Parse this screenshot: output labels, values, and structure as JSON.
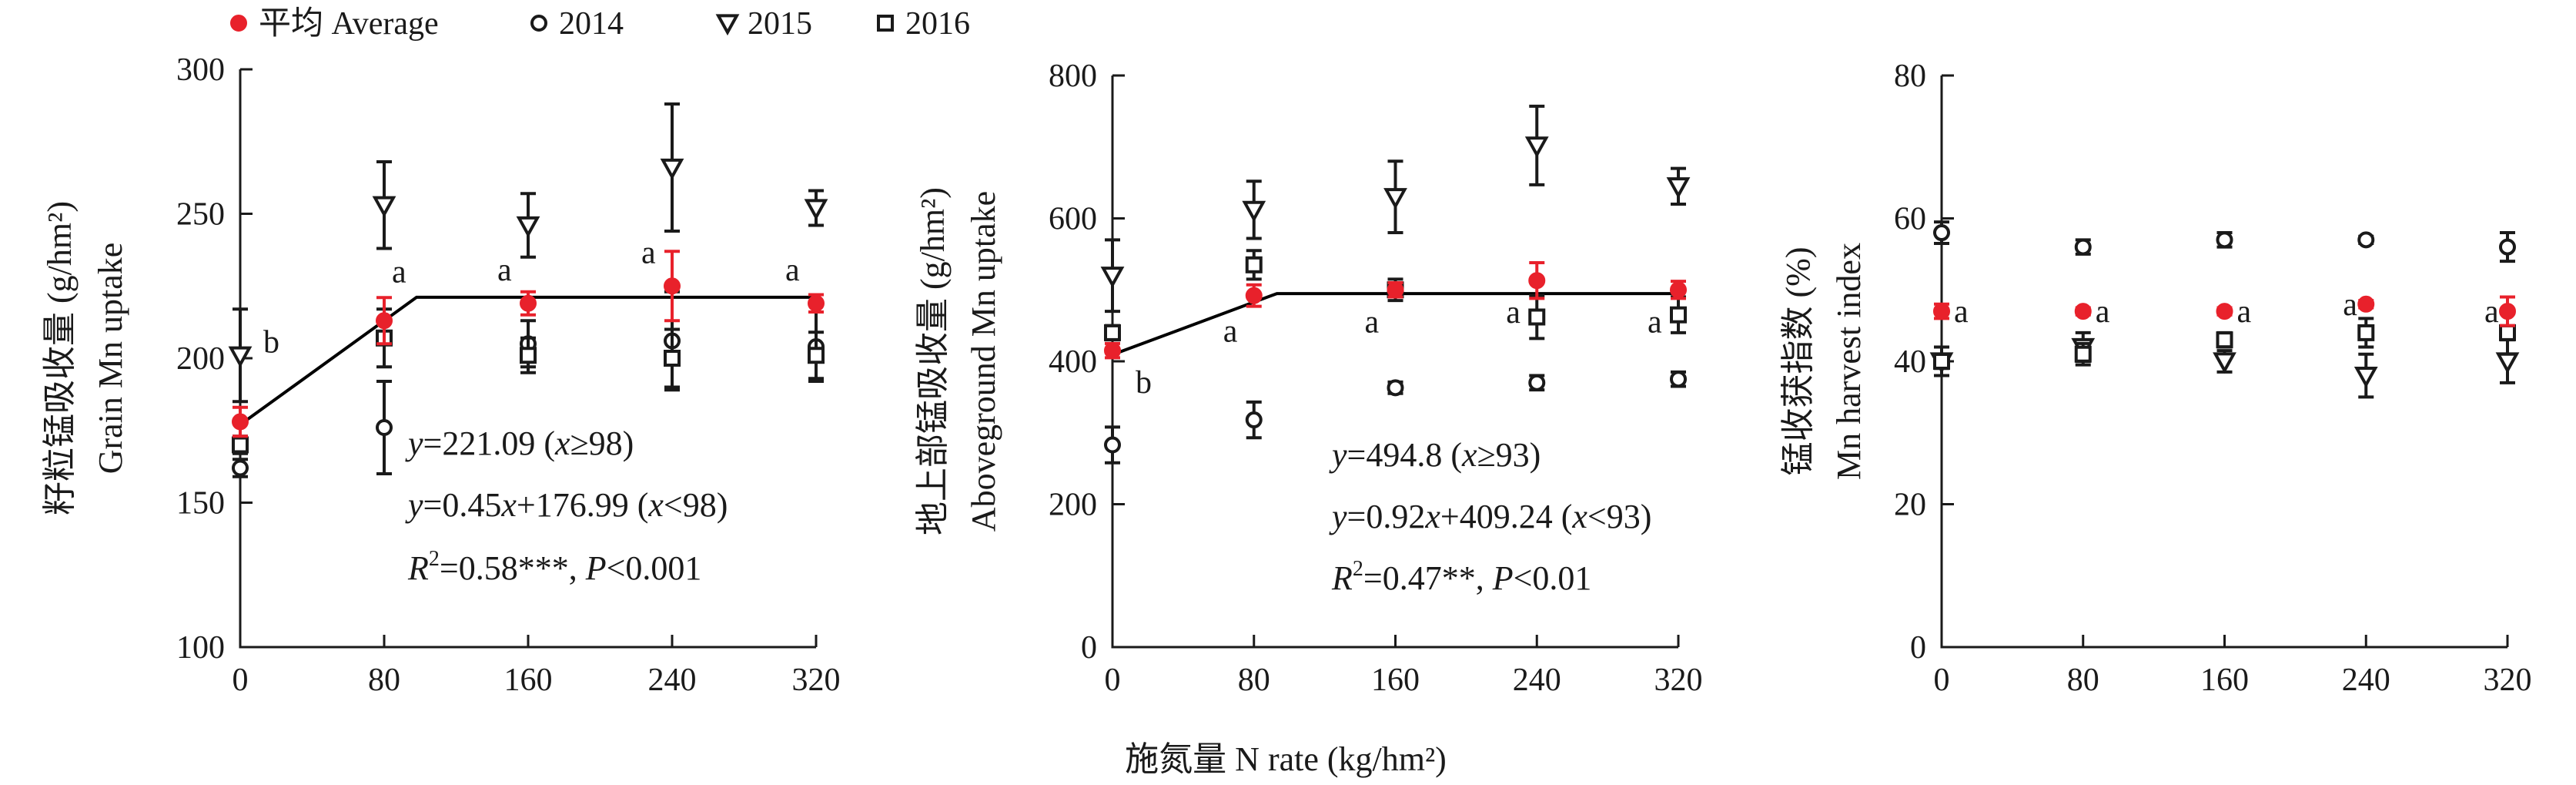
{
  "legend": {
    "items": [
      {
        "key": "avg",
        "label": "平均 Average",
        "marker": "filled-circle",
        "color": "#e8212b"
      },
      {
        "key": "y2014",
        "label": "2014",
        "marker": "open-circle",
        "color": "#1a1a1a"
      },
      {
        "key": "y2015",
        "label": "2015",
        "marker": "down-triangle",
        "color": "#1a1a1a"
      },
      {
        "key": "y2016",
        "label": "2016",
        "marker": "open-square",
        "color": "#1a1a1a"
      }
    ]
  },
  "shared_xlabel": "施氮量 N rate (kg/hm²)",
  "chart_data": [
    {
      "type": "scatter",
      "ylabel_cn": "籽粒锰吸收量 (g/hm²)",
      "ylabel_en": "Grain Mn uptake",
      "xlim": [
        0,
        320
      ],
      "ylim": [
        100,
        300
      ],
      "xticks": [
        0,
        80,
        160,
        240,
        320
      ],
      "yticks": [
        100,
        150,
        200,
        250,
        300
      ],
      "x": [
        0,
        80,
        160,
        240,
        320
      ],
      "series": [
        {
          "key": "y2014",
          "values": [
            162,
            176,
            205,
            206,
            204
          ],
          "err": [
            3,
            16,
            8,
            17,
            12
          ]
        },
        {
          "key": "y2015",
          "values": [
            201,
            253,
            246,
            266,
            252
          ],
          "err": [
            16,
            15,
            11,
            22,
            6
          ]
        },
        {
          "key": "y2016",
          "values": [
            170,
            207,
            201,
            200,
            201
          ],
          "err": [
            3,
            10,
            6,
            10,
            8
          ]
        },
        {
          "key": "avg",
          "values": [
            178,
            213,
            219,
            225,
            219
          ],
          "err": [
            5,
            8,
            4,
            12,
            3
          ]
        }
      ],
      "fit": {
        "breakpoint": 98,
        "plateau": 221.09,
        "slope": 0.45,
        "intercept": 176.99
      },
      "letters": [
        {
          "x": 0,
          "text": "b"
        },
        {
          "x": 80,
          "text": "a"
        },
        {
          "x": 160,
          "text": "a"
        },
        {
          "x": 240,
          "text": "a"
        },
        {
          "x": 320,
          "text": "a"
        }
      ],
      "equations": [
        {
          "y": "y",
          "rest": "=221.09 (",
          "x": "x",
          "tail": "≥98)"
        },
        {
          "y": "y",
          "rest": "=0.45",
          "x": "x",
          "tail": "+176.99 (x<98)"
        },
        {
          "r2": "R",
          "rest": "=0.58***, ",
          "p": "P",
          "tail": "<0.001"
        }
      ]
    },
    {
      "type": "scatter",
      "ylabel_cn": "地上部锰吸收量 (g/hm²)",
      "ylabel_en": "Aboveground Mn uptake",
      "xlim": [
        0,
        320
      ],
      "ylim": [
        0,
        800
      ],
      "xticks": [
        0,
        80,
        160,
        240,
        320
      ],
      "yticks": [
        0,
        200,
        400,
        600,
        800
      ],
      "x": [
        0,
        80,
        160,
        240,
        320
      ],
      "series": [
        {
          "key": "y2014",
          "values": [
            283,
            318,
            363,
            370,
            375
          ],
          "err": [
            25,
            25,
            8,
            10,
            10
          ]
        },
        {
          "key": "y2015",
          "values": [
            520,
            612,
            630,
            702,
            645
          ],
          "err": [
            50,
            40,
            50,
            55,
            25
          ]
        },
        {
          "key": "y2016",
          "values": [
            440,
            535,
            500,
            462,
            465
          ],
          "err": [
            10,
            20,
            15,
            30,
            25
          ]
        },
        {
          "key": "avg",
          "values": [
            415,
            492,
            500,
            513,
            500
          ],
          "err": [
            10,
            15,
            10,
            25,
            12
          ]
        }
      ],
      "fit": {
        "breakpoint": 93,
        "plateau": 494.8,
        "slope": 0.92,
        "intercept": 409.24
      },
      "letters": [
        {
          "x": 0,
          "text": "b"
        },
        {
          "x": 80,
          "text": "a"
        },
        {
          "x": 160,
          "text": "a"
        },
        {
          "x": 240,
          "text": "a"
        },
        {
          "x": 320,
          "text": "a"
        }
      ],
      "equations": [
        {
          "y": "y",
          "rest": "=494.8 (",
          "x": "x",
          "tail": "≥93)"
        },
        {
          "y": "y",
          "rest": "=0.92",
          "x": "x",
          "tail": "+409.24 (x<93)"
        },
        {
          "r2": "R",
          "rest": "=0.47**, ",
          "p": "P",
          "tail": "<0.01"
        }
      ]
    },
    {
      "type": "scatter",
      "ylabel_cn": "锰收获指数 (%)",
      "ylabel_en": "Mn harvest index",
      "xlim": [
        0,
        320
      ],
      "ylim": [
        0,
        80
      ],
      "xticks": [
        0,
        80,
        160,
        240,
        320
      ],
      "yticks": [
        0,
        20,
        40,
        60,
        80
      ],
      "x": [
        0,
        80,
        160,
        240,
        320
      ],
      "series": [
        {
          "key": "y2014",
          "values": [
            58,
            56,
            57,
            57,
            56
          ],
          "err": [
            1.5,
            1,
            1,
            0.5,
            2
          ]
        },
        {
          "key": "y2015",
          "values": [
            40,
            42,
            40,
            38,
            40
          ],
          "err": [
            2,
            2,
            1.5,
            3,
            3
          ]
        },
        {
          "key": "y2016",
          "values": [
            40,
            41,
            43,
            44,
            44
          ],
          "err": [
            1,
            1.5,
            1,
            2,
            3
          ]
        },
        {
          "key": "avg",
          "values": [
            47,
            47,
            47,
            48,
            47
          ],
          "err": [
            1,
            0.5,
            0.5,
            0.5,
            2
          ]
        }
      ],
      "letters": [
        {
          "x": 0,
          "text": "a"
        },
        {
          "x": 80,
          "text": "a"
        },
        {
          "x": 160,
          "text": "a"
        },
        {
          "x": 240,
          "text": "a"
        },
        {
          "x": 320,
          "text": "a"
        }
      ]
    }
  ]
}
